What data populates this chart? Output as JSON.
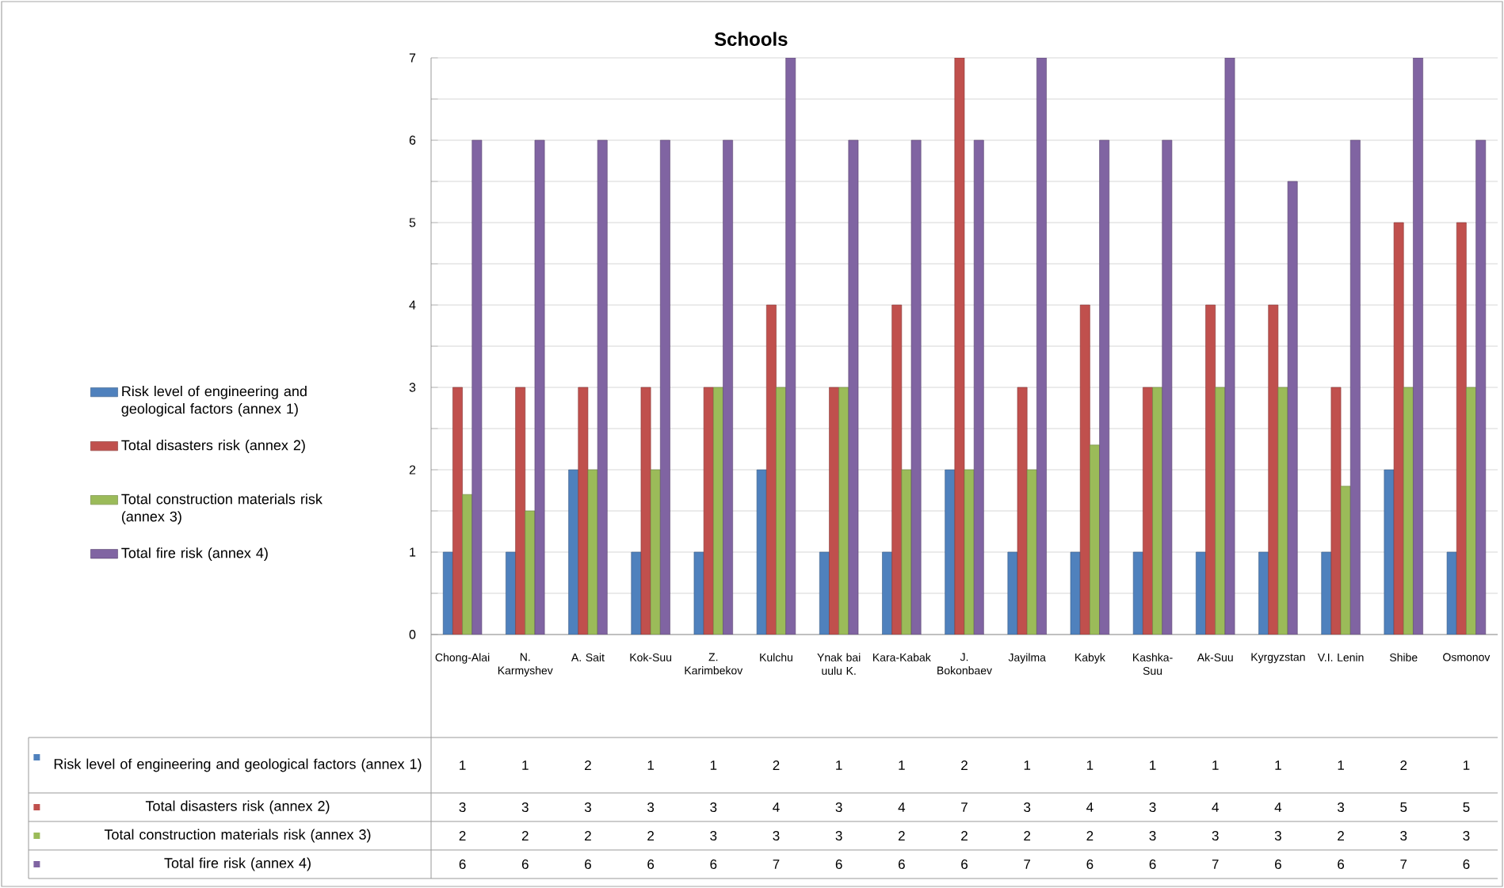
{
  "chart_data": {
    "type": "bar",
    "title": "Schools",
    "categories": [
      "Chong-Alai",
      "N. Karmyshev",
      "A. Sait",
      "Kok-Suu",
      "Z. Karimbekov",
      "Kulchu",
      "Ynak bai uulu K.",
      "Kara-Kabak",
      "J. Bokonbaev",
      "Jayilma",
      "Kabyk",
      "Kashka-Suu",
      "Ak-Suu",
      "Kyrgyzstan",
      "V.I. Lenin",
      "Shibe",
      "Osmonov"
    ],
    "series": [
      {
        "name": "Risk level of engineering and geological factors (annex 1)",
        "color": "#4f81bd",
        "values": [
          1,
          1,
          2,
          1,
          1,
          2,
          1,
          1,
          2,
          1,
          1,
          1,
          1,
          1,
          1,
          2,
          1
        ],
        "value_labels": [
          "1",
          "1",
          "2",
          "1",
          "1",
          "2",
          "1",
          "1",
          "2",
          "1",
          "1",
          "1",
          "1",
          "1",
          "1",
          "2",
          "1"
        ]
      },
      {
        "name": "Total disasters risk (annex 2)",
        "color": "#c0504d",
        "values": [
          3,
          3,
          3,
          3,
          3,
          4,
          3,
          4,
          7,
          3,
          4,
          3,
          4,
          4,
          3,
          5,
          5
        ],
        "value_labels": [
          "3",
          "3",
          "3",
          "3",
          "3",
          "4",
          "3",
          "4",
          "7",
          "3",
          "4",
          "3",
          "4",
          "4",
          "3",
          "5",
          "5"
        ]
      },
      {
        "name": "Total construction materials risk (annex 3)",
        "color": "#9bbb59",
        "values": [
          1.7,
          1.5,
          2,
          2,
          3,
          3,
          3,
          2,
          2,
          2,
          2.3,
          3,
          3,
          3,
          1.8,
          3,
          3
        ],
        "value_labels": [
          "2",
          "2",
          "2",
          "2",
          "3",
          "3",
          "3",
          "2",
          "2",
          "2",
          "2",
          "3",
          "3",
          "3",
          "2",
          "3",
          "3"
        ]
      },
      {
        "name": "Total fire risk (annex  4)",
        "color": "#8064a2",
        "values": [
          6,
          6,
          6,
          6,
          6,
          7,
          6,
          6,
          6,
          7,
          6,
          6,
          7,
          5.5,
          6,
          7,
          6
        ],
        "value_labels": [
          "6",
          "6",
          "6",
          "6",
          "6",
          "7",
          "6",
          "6",
          "6",
          "7",
          "6",
          "6",
          "7",
          "6",
          "6",
          "7",
          "6"
        ]
      }
    ],
    "ylim": [
      0,
      7
    ],
    "yticks": [
      0,
      {
        "value": 0.5,
        "label": null
      },
      1,
      {
        "value": 1.5,
        "label": null
      },
      2,
      {
        "value": 2.5,
        "label": null
      },
      3,
      {
        "value": 3.5,
        "label": null
      },
      4,
      {
        "value": 4.5,
        "label": null
      },
      5,
      {
        "value": 5.5,
        "label": null
      },
      6,
      {
        "value": 6.5,
        "label": null
      },
      7
    ],
    "grid": "y",
    "legend": "left"
  }
}
